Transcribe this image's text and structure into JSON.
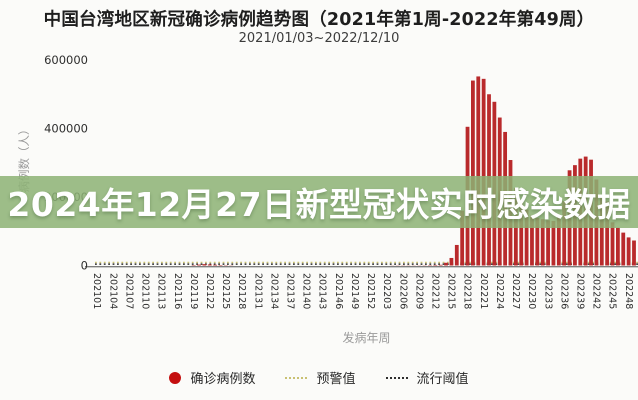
{
  "header": {
    "title": "中国台湾地区新冠确诊病例趋势图（2021年第1周-2022年第49周）",
    "subtitle": "2021/01/03~2022/12/10"
  },
  "overlay_banner": {
    "text": "2024年12月27日新型冠状实时感染数据",
    "bg_color": "#8cb274",
    "text_color": "#ffffff"
  },
  "legend": {
    "items": [
      {
        "label": "确诊病例数",
        "swatch": "circle",
        "color": "#c40f0f"
      },
      {
        "label": "预警值",
        "swatch": "dotted-line",
        "color": "#c9c173"
      },
      {
        "label": "流行阈值",
        "swatch": "dotted-line",
        "color": "#2e2e2e"
      }
    ]
  },
  "colors": {
    "bar": "#b92a2c",
    "axis_line": "#7d7d7d",
    "tick_text": "#2e2e2e",
    "axis_label": "#9a9a9a",
    "background": "#fbfbf9"
  },
  "chart_data": {
    "type": "bar",
    "title": "中国台湾地区新冠确诊病例趋势图（2021年第1周-2022年第49周）",
    "subtitle": "2021/01/03~2022/12/10",
    "xlabel": "发病年周",
    "ylabel": "病例数（人）",
    "ylim": [
      0,
      600000
    ],
    "grid": false,
    "legend_position": "bottom",
    "yticks": [
      0,
      200000,
      400000,
      600000
    ],
    "ytick_labels": [
      "0",
      "200000",
      "400000",
      "600000"
    ],
    "xtick_labels": [
      "202101",
      "202104",
      "202107",
      "202110",
      "202113",
      "202116",
      "202119",
      "202122",
      "202125",
      "202128",
      "202131",
      "202134",
      "202137",
      "202140",
      "202143",
      "202146",
      "202149",
      "202152",
      "202203",
      "202206",
      "202209",
      "202212",
      "202215",
      "202218",
      "202221",
      "202224",
      "202227",
      "202230",
      "202233",
      "202236",
      "202239",
      "202242",
      "202245",
      "202248"
    ],
    "categories": [
      "202101",
      "202102",
      "202103",
      "202104",
      "202105",
      "202106",
      "202107",
      "202108",
      "202109",
      "202110",
      "202111",
      "202112",
      "202113",
      "202114",
      "202115",
      "202116",
      "202117",
      "202118",
      "202119",
      "202120",
      "202121",
      "202122",
      "202123",
      "202124",
      "202125",
      "202126",
      "202127",
      "202128",
      "202129",
      "202130",
      "202131",
      "202132",
      "202133",
      "202134",
      "202135",
      "202136",
      "202137",
      "202138",
      "202139",
      "202140",
      "202141",
      "202142",
      "202143",
      "202144",
      "202145",
      "202146",
      "202147",
      "202148",
      "202149",
      "202150",
      "202151",
      "202152",
      "202201",
      "202202",
      "202203",
      "202204",
      "202205",
      "202206",
      "202207",
      "202208",
      "202209",
      "202210",
      "202211",
      "202212",
      "202213",
      "202214",
      "202215",
      "202216",
      "202217",
      "202218",
      "202219",
      "202220",
      "202221",
      "202222",
      "202223",
      "202224",
      "202225",
      "202226",
      "202227",
      "202228",
      "202229",
      "202230",
      "202231",
      "202232",
      "202233",
      "202234",
      "202235",
      "202236",
      "202237",
      "202238",
      "202239",
      "202240",
      "202241",
      "202242",
      "202243",
      "202244",
      "202245",
      "202246",
      "202247",
      "202248",
      "202249"
    ],
    "series": [
      {
        "name": "确诊病例数",
        "color": "#b92a2c",
        "values": [
          25,
          20,
          18,
          15,
          15,
          12,
          10,
          10,
          12,
          15,
          14,
          12,
          10,
          10,
          12,
          15,
          20,
          40,
          1300,
          2600,
          3900,
          3100,
          2100,
          1400,
          900,
          600,
          420,
          350,
          300,
          250,
          200,
          170,
          150,
          130,
          110,
          100,
          90,
          80,
          75,
          70,
          65,
          60,
          55,
          50,
          50,
          45,
          45,
          40,
          40,
          60,
          90,
          140,
          250,
          300,
          350,
          450,
          550,
          600,
          550,
          500,
          550,
          700,
          1100,
          1600,
          2000,
          8000,
          22000,
          60000,
          160000,
          405000,
          540000,
          552000,
          545000,
          500000,
          478000,
          432000,
          390000,
          308000,
          226000,
          191000,
          163000,
          146000,
          139000,
          135000,
          132000,
          130000,
          149000,
          188000,
          278000,
          293000,
          312000,
          318000,
          309000,
          251000,
          206000,
          187000,
          126000,
          110000,
          96000,
          82000,
          73000
        ]
      }
    ],
    "reference_lines": [
      {
        "name": "预警值",
        "value": 9000,
        "color": "#c9c173",
        "style": "dotted"
      },
      {
        "name": "流行阈值",
        "value": 4000,
        "color": "#2e2e2e",
        "style": "dotted"
      }
    ]
  }
}
